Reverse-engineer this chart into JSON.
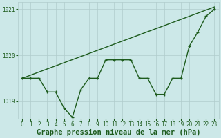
{
  "title": "Graphe pression niveau de la mer (hPa)",
  "x_values": [
    0,
    1,
    2,
    3,
    4,
    5,
    6,
    7,
    8,
    9,
    10,
    11,
    12,
    13,
    14,
    15,
    16,
    17,
    18,
    19,
    20,
    21,
    22,
    23
  ],
  "y_values": [
    1019.5,
    1019.5,
    1019.5,
    1019.2,
    1019.2,
    1018.85,
    1018.65,
    1019.25,
    1019.5,
    1019.5,
    1019.9,
    1019.9,
    1019.9,
    1019.9,
    1019.5,
    1019.5,
    1019.15,
    1019.15,
    1019.5,
    1019.5,
    1020.2,
    1020.5,
    1020.85,
    1021.0
  ],
  "trend_x": [
    0,
    23
  ],
  "trend_y": [
    1019.5,
    1021.05
  ],
  "ylim": [
    1018.62,
    1021.15
  ],
  "xlim": [
    -0.5,
    23.5
  ],
  "bg_color": "#cce8e8",
  "line_color": "#1e5c1e",
  "trend_color": "#1e5c1e",
  "grid_color": "#b0cccc",
  "yticks": [
    1019,
    1020,
    1021
  ],
  "xticks": [
    0,
    1,
    2,
    3,
    4,
    5,
    6,
    7,
    8,
    9,
    10,
    11,
    12,
    13,
    14,
    15,
    16,
    17,
    18,
    19,
    20,
    21,
    22,
    23
  ],
  "marker": "+",
  "marker_size": 3.5,
  "line_width": 1.0,
  "title_fontsize": 7.5,
  "tick_fontsize": 5.5
}
